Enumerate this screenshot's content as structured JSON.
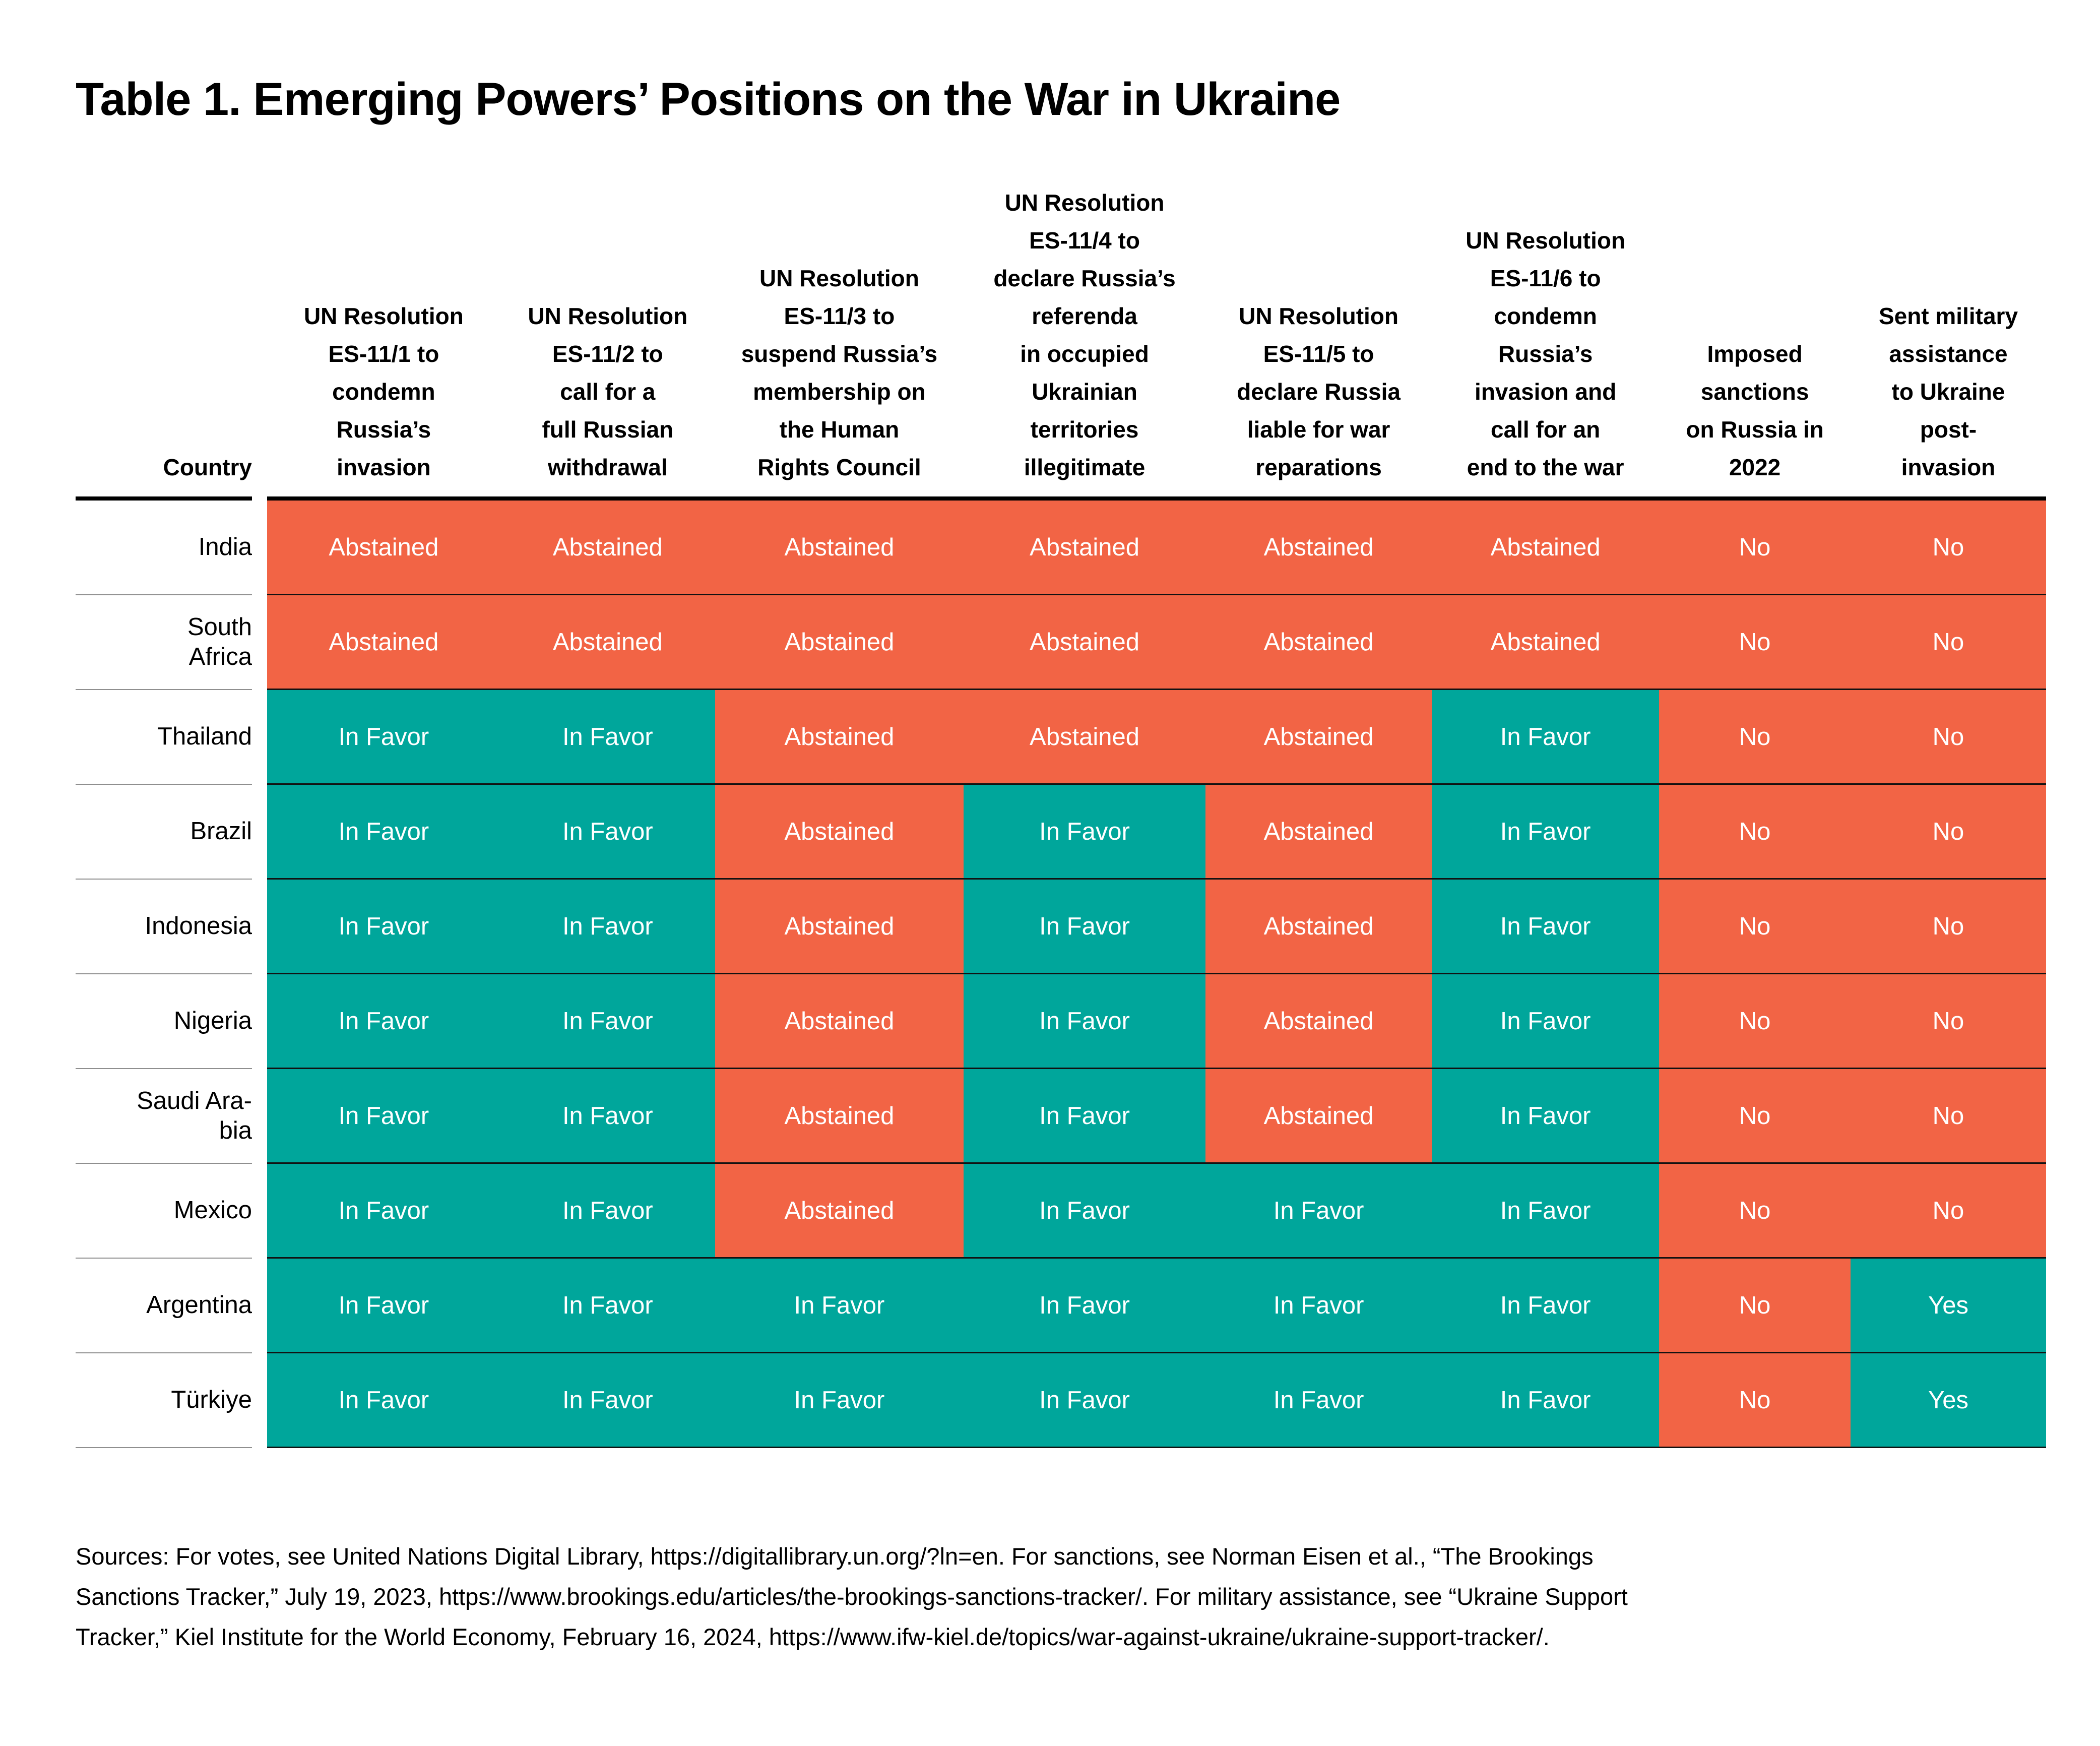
{
  "title": "Table 1. Emerging Powers’ Positions on the War in Ukraine",
  "colors": {
    "abstained_no_orange": "#F26445",
    "in_favor_yes_teal": "#00A69B",
    "row_divider_dark": "#121212",
    "country_divider_gray": "#8f8f8f"
  },
  "table": {
    "country_header": "Country",
    "columns": [
      {
        "id": "es-11-1",
        "header": "UN Resolution\nES-11/1 to\ncondemn\nRussia’s\ninvasion"
      },
      {
        "id": "es-11-2",
        "header": "UN Resolution\nES-11/2 to\ncall for a\nfull Russian\nwithdrawal"
      },
      {
        "id": "es-11-3",
        "header": "UN Resolution\nES-11/3 to\nsuspend Russia’s\nmembership on\nthe Human\nRights Council"
      },
      {
        "id": "es-11-4",
        "header": "UN Resolution\nES-11/4 to\ndeclare Russia’s\nreferenda\nin occupied\nUkrainian\nterritories\nillegitimate"
      },
      {
        "id": "es-11-5",
        "header": "UN Resolution\nES-11/5 to\ndeclare Russia\nliable for war\nreparations"
      },
      {
        "id": "es-11-6",
        "header": "UN Resolution\nES-11/6 to\ncondemn\nRussia’s\ninvasion and\ncall for an\nend to the war"
      },
      {
        "id": "sanctions-2022",
        "header": "Imposed\nsanctions\non Russia in\n2022"
      },
      {
        "id": "military-assistance",
        "header": "Sent military\nassistance\nto Ukraine\npost-\ninvasion"
      }
    ],
    "rows": [
      {
        "country": "India",
        "country_display": "India",
        "values": [
          "Abstained",
          "Abstained",
          "Abstained",
          "Abstained",
          "Abstained",
          "Abstained",
          "No",
          "No"
        ]
      },
      {
        "country": "South Africa",
        "country_display": "South\nAfrica",
        "values": [
          "Abstained",
          "Abstained",
          "Abstained",
          "Abstained",
          "Abstained",
          "Abstained",
          "No",
          "No"
        ]
      },
      {
        "country": "Thailand",
        "country_display": "Thailand",
        "values": [
          "In Favor",
          "In Favor",
          "Abstained",
          "Abstained",
          "Abstained",
          "In Favor",
          "No",
          "No"
        ]
      },
      {
        "country": "Brazil",
        "country_display": "Brazil",
        "values": [
          "In Favor",
          "In Favor",
          "Abstained",
          "In Favor",
          "Abstained",
          "In Favor",
          "No",
          "No"
        ]
      },
      {
        "country": "Indonesia",
        "country_display": "Indonesia",
        "values": [
          "In Favor",
          "In Favor",
          "Abstained",
          "In Favor",
          "Abstained",
          "In Favor",
          "No",
          "No"
        ]
      },
      {
        "country": "Nigeria",
        "country_display": "Nigeria",
        "values": [
          "In Favor",
          "In Favor",
          "Abstained",
          "In Favor",
          "Abstained",
          "In Favor",
          "No",
          "No"
        ]
      },
      {
        "country": "Saudi Arabia",
        "country_display": "Saudi Ara-\nbia",
        "values": [
          "In Favor",
          "In Favor",
          "Abstained",
          "In Favor",
          "Abstained",
          "In Favor",
          "No",
          "No"
        ]
      },
      {
        "country": "Mexico",
        "country_display": "Mexico",
        "values": [
          "In Favor",
          "In Favor",
          "Abstained",
          "In Favor",
          "In Favor",
          "In Favor",
          "No",
          "No"
        ]
      },
      {
        "country": "Argentina",
        "country_display": "Argentina",
        "values": [
          "In Favor",
          "In Favor",
          "In Favor",
          "In Favor",
          "In Favor",
          "In Favor",
          "No",
          "Yes"
        ]
      },
      {
        "country": "Türkiye",
        "country_display": "Türkiye",
        "values": [
          "In Favor",
          "In Favor",
          "In Favor",
          "In Favor",
          "In Favor",
          "In Favor",
          "No",
          "Yes"
        ]
      }
    ]
  },
  "footer": {
    "text": "Sources: For votes, see United Nations Digital Library, https://digitallibrary.un.org/?ln=en. For sanctions, see Norman Eisen et al., “The Brookings\nSanctions Tracker,” July 19, 2023, https://www.brookings.edu/articles/the-brookings-sanctions-tracker/. For military assistance, see “Ukraine Support\nTracker,” Kiel Institute for the World Economy, February 16, 2024, https://www.ifw-kiel.de/topics/war-against-ukraine/ukraine-support-tracker/."
  }
}
